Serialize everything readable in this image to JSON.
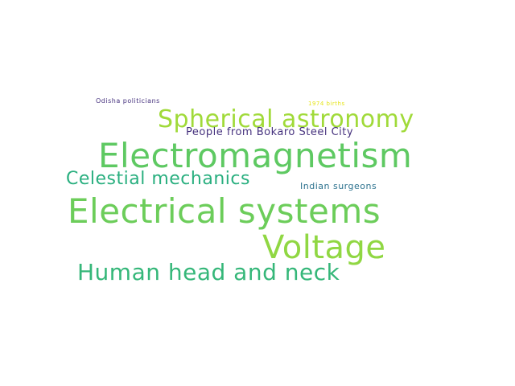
{
  "words": {
    "electromagnetism": "Electromagnetism",
    "electrical_systems": "Electrical systems",
    "voltage": "Voltage",
    "spherical_astronomy": "Spherical astronomy",
    "human_head_and_neck": "Human head and neck",
    "celestial_mechanics": "Celestial mechanics",
    "people_from_bokaro": "People from Bokaro Steel City",
    "indian_surgeons": "Indian surgeons",
    "odisha_politicians": "Odisha politicians",
    "births_1974": "1974 births"
  },
  "colors": {
    "background": "#ffffff",
    "palette": [
      "#46327e",
      "#2c728e",
      "#29af7f",
      "#35b779",
      "#5ec962",
      "#6ccd5a",
      "#90d743",
      "#a0da39",
      "#e5e419"
    ]
  }
}
